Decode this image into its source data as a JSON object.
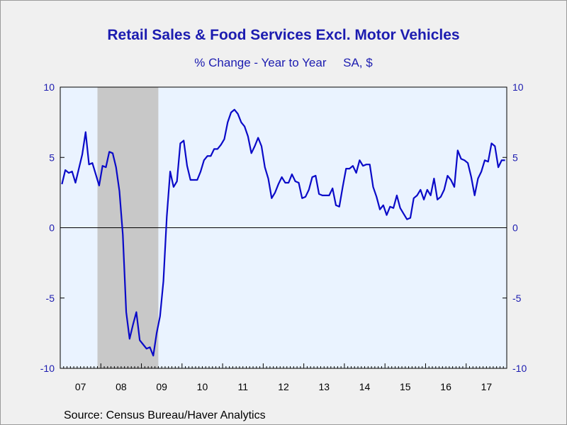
{
  "chart_data": {
    "type": "line",
    "title": "Retail Sales & Food Services Excl. Motor Vehicles",
    "subtitle": "% Change - Year to Year     SA, $",
    "source": "Source:  Census Bureau/Haver Analytics",
    "x_start": "2007-01",
    "x_end": "2017-12",
    "x_tick_labels": [
      "07",
      "08",
      "09",
      "10",
      "11",
      "12",
      "13",
      "14",
      "15",
      "16",
      "17"
    ],
    "ylim": [
      -10,
      10
    ],
    "y_ticks": [
      10,
      5,
      0,
      -5,
      -10
    ],
    "y_tick_labels": [
      "10",
      "5",
      "0",
      "-5",
      "-10"
    ],
    "recession_shading": {
      "start": "2007-12",
      "end": "2009-06",
      "color": "#c8c8c8"
    },
    "colors": {
      "line": "#0a0ac8",
      "plot_bg": "#eaf3ff",
      "axis_text": "#1c1cb0"
    },
    "series": [
      {
        "start": "2007-01",
        "values": [
          3.1,
          4.1,
          3.9,
          4.0,
          3.2,
          4.2,
          5.2,
          6.8,
          4.5,
          4.6,
          3.8,
          3.0,
          4.4,
          4.3,
          5.4,
          5.3,
          4.3,
          2.6,
          -0.5,
          -6.0,
          -7.9,
          -6.9,
          -6.0,
          -8.0,
          -8.3,
          -8.6,
          -8.5,
          -9.1,
          -7.5,
          -6.3,
          -3.8,
          0.8,
          4.0,
          2.9,
          3.3,
          6.0,
          6.2,
          4.4,
          3.4,
          3.4,
          3.4,
          4.0,
          4.8,
          5.1,
          5.1,
          5.6,
          5.6,
          5.9,
          6.3,
          7.5,
          8.2,
          8.4,
          8.1,
          7.5,
          7.2,
          6.5,
          5.3,
          5.8,
          6.4,
          5.8,
          4.3,
          3.5,
          2.1,
          2.5,
          3.1,
          3.6,
          3.2,
          3.2,
          3.8,
          3.3,
          3.2,
          2.1,
          2.2,
          2.7,
          3.6,
          3.7,
          2.4,
          2.3,
          2.3,
          2.3,
          2.8,
          1.6,
          1.5,
          2.9,
          4.2,
          4.2,
          4.4,
          3.9,
          4.8,
          4.4,
          4.5,
          4.5,
          2.9,
          2.2,
          1.3,
          1.6,
          0.9,
          1.5,
          1.4,
          2.3,
          1.4,
          1.0,
          0.6,
          0.7,
          2.1,
          2.3,
          2.7,
          2.0,
          2.7,
          2.3,
          3.5,
          2.0,
          2.2,
          2.7,
          3.7,
          3.4,
          2.9,
          5.5,
          4.9,
          4.8,
          4.6,
          3.6,
          2.3,
          3.5,
          4.0,
          4.8,
          4.7,
          6.0,
          5.8,
          4.3,
          4.8,
          4.8
        ]
      }
    ]
  }
}
